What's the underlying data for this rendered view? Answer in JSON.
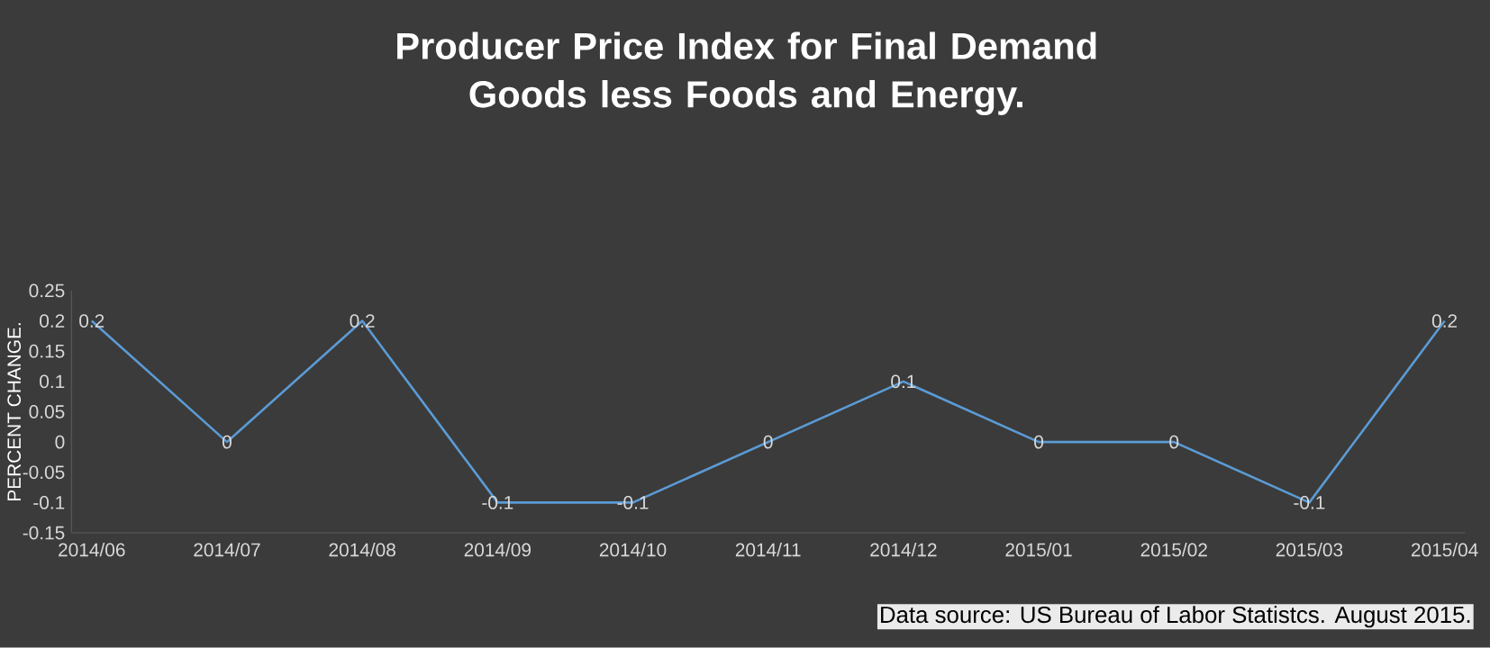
{
  "chart_data": {
    "type": "line",
    "title": "Producer Price Index for Final Demand Goods less Foods and Energy.",
    "ylabel": "PERCENT CHANGE.",
    "categories": [
      "2014/06",
      "2014/07",
      "2014/08",
      "2014/09",
      "2014/10",
      "2014/11",
      "2014/12",
      "2015/01",
      "2015/02",
      "2015/03",
      "2015/04"
    ],
    "values": [
      0.2,
      0,
      0.2,
      -0.1,
      -0.1,
      0,
      0.1,
      0,
      0,
      -0.1,
      0.2
    ],
    "color": "#5b9bd5",
    "ylim": [
      -0.15,
      0.25
    ],
    "yticks": [
      -0.15,
      -0.1,
      -0.05,
      0,
      0.05,
      0.1,
      0.15,
      0.2,
      0.25
    ],
    "data_labels": true,
    "grid": false,
    "marker": "none",
    "line_style": "solid",
    "annotations": [
      "Data source: US Bureau of Labor Statistcs. August 2015."
    ]
  }
}
